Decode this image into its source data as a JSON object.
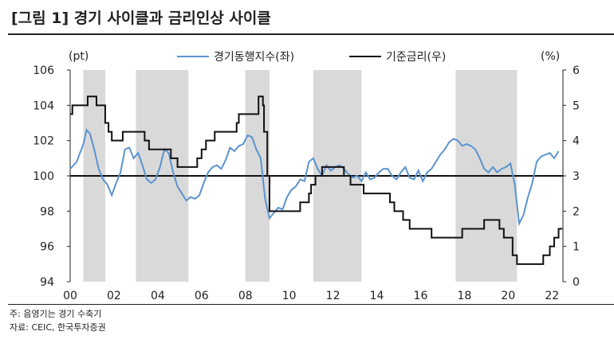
{
  "title": "[그림 1] 경기 사이클과 금리인상 사이클",
  "notes": {
    "note": "주: 음영기는 경기 수축기",
    "source": "자료: CEIC, 한국투자증권"
  },
  "chart_data": {
    "type": "line",
    "left_unit": "(pt)",
    "right_unit": "(%)",
    "ylim_left": [
      94,
      106
    ],
    "yticks_left": [
      "94",
      "96",
      "98",
      "100",
      "102",
      "104",
      "106"
    ],
    "ylim_right": [
      0,
      6
    ],
    "yticks_right": [
      "0",
      "1",
      "2",
      "3",
      "4",
      "5",
      "6"
    ],
    "xlim": [
      2000,
      2022.5
    ],
    "xticks": [
      "00",
      "02",
      "04",
      "06",
      "08",
      "10",
      "12",
      "14",
      "16",
      "18",
      "20",
      "22"
    ],
    "reference_line": 100,
    "recessions": [
      [
        2000.6,
        2001.6
      ],
      [
        2003.0,
        2005.4
      ],
      [
        2008.0,
        2009.1
      ],
      [
        2011.1,
        2013.3
      ],
      [
        2017.6,
        2020.4
      ]
    ],
    "series": [
      {
        "name": "경기동행지수(좌)",
        "axis": "left",
        "color": "#5b93cf",
        "x": [
          2000.0,
          2000.3,
          2000.6,
          2000.75,
          2000.9,
          2001.1,
          2001.3,
          2001.5,
          2001.7,
          2001.9,
          2002.1,
          2002.3,
          2002.5,
          2002.7,
          2002.9,
          2003.1,
          2003.3,
          2003.5,
          2003.7,
          2003.9,
          2004.1,
          2004.3,
          2004.5,
          2004.7,
          2004.9,
          2005.1,
          2005.3,
          2005.5,
          2005.7,
          2005.9,
          2006.1,
          2006.3,
          2006.5,
          2006.7,
          2006.9,
          2007.1,
          2007.3,
          2007.5,
          2007.7,
          2007.9,
          2008.1,
          2008.3,
          2008.5,
          2008.7,
          2008.9,
          2009.1,
          2009.3,
          2009.5,
          2009.7,
          2009.9,
          2010.1,
          2010.3,
          2010.5,
          2010.7,
          2010.9,
          2011.1,
          2011.3,
          2011.5,
          2011.7,
          2011.9,
          2012.1,
          2012.3,
          2012.5,
          2012.7,
          2012.9,
          2013.1,
          2013.3,
          2013.5,
          2013.7,
          2013.9,
          2014.1,
          2014.3,
          2014.5,
          2014.7,
          2014.9,
          2015.1,
          2015.3,
          2015.5,
          2015.7,
          2015.9,
          2016.1,
          2016.3,
          2016.5,
          2016.7,
          2016.9,
          2017.1,
          2017.3,
          2017.5,
          2017.7,
          2017.9,
          2018.1,
          2018.3,
          2018.5,
          2018.7,
          2018.9,
          2019.1,
          2019.3,
          2019.5,
          2019.7,
          2019.9,
          2020.1,
          2020.3,
          2020.5,
          2020.7,
          2020.9,
          2021.1,
          2021.3,
          2021.5,
          2021.7,
          2021.9,
          2022.1,
          2022.3
        ],
        "y": [
          100.4,
          100.8,
          101.8,
          102.6,
          102.4,
          101.5,
          100.4,
          99.8,
          99.5,
          98.9,
          99.6,
          100.2,
          101.5,
          101.6,
          101.0,
          101.3,
          100.6,
          99.8,
          99.6,
          99.8,
          100.5,
          101.5,
          101.3,
          100.2,
          99.4,
          99.0,
          98.6,
          98.8,
          98.7,
          98.9,
          99.6,
          100.2,
          100.5,
          100.6,
          100.4,
          100.9,
          101.6,
          101.4,
          101.7,
          101.8,
          102.3,
          102.2,
          101.5,
          101.0,
          98.7,
          97.6,
          97.9,
          98.2,
          98.1,
          98.8,
          99.2,
          99.4,
          99.8,
          99.7,
          100.8,
          101.0,
          100.4,
          100.0,
          100.6,
          100.3,
          100.5,
          100.6,
          100.4,
          100.1,
          99.9,
          100.0,
          99.7,
          100.2,
          99.8,
          99.9,
          100.2,
          100.4,
          100.4,
          100.0,
          99.8,
          100.2,
          100.5,
          99.9,
          99.8,
          100.3,
          99.7,
          100.2,
          100.4,
          100.8,
          101.2,
          101.5,
          101.9,
          102.1,
          102.0,
          101.7,
          101.8,
          101.7,
          101.5,
          101.0,
          100.4,
          100.2,
          100.5,
          100.2,
          100.4,
          100.5,
          100.7,
          99.5,
          97.3,
          97.8,
          98.8,
          99.6,
          100.8,
          101.1,
          101.2,
          101.3,
          101.0,
          101.4
        ]
      },
      {
        "name": "기준금리(우)",
        "axis": "right",
        "color": "#111111",
        "step": true,
        "x": [
          2000.0,
          2000.1,
          2000.8,
          2001.2,
          2001.6,
          2001.75,
          2001.9,
          2002.4,
          2003.4,
          2003.6,
          2004.6,
          2004.9,
          2005.8,
          2006.0,
          2006.2,
          2006.6,
          2007.6,
          2007.7,
          2008.6,
          2008.8,
          2008.85,
          2009.0,
          2009.1,
          2010.5,
          2010.9,
          2011.0,
          2011.2,
          2011.5,
          2012.5,
          2012.8,
          2013.4,
          2014.6,
          2014.8,
          2015.2,
          2015.5,
          2016.5,
          2017.9,
          2018.9,
          2019.6,
          2019.8,
          2020.2,
          2020.4,
          2021.6,
          2021.9,
          2022.1,
          2022.3
        ],
        "y": [
          4.75,
          5.0,
          5.25,
          5.0,
          4.5,
          4.25,
          4.0,
          4.25,
          4.0,
          3.75,
          3.5,
          3.25,
          3.5,
          3.75,
          4.0,
          4.25,
          4.5,
          4.75,
          5.25,
          5.0,
          4.25,
          3.0,
          2.0,
          2.25,
          2.5,
          2.75,
          3.0,
          3.25,
          3.0,
          2.75,
          2.5,
          2.25,
          2.0,
          1.75,
          1.5,
          1.25,
          1.5,
          1.75,
          1.5,
          1.25,
          0.75,
          0.5,
          0.75,
          1.0,
          1.25,
          1.5
        ]
      }
    ]
  }
}
